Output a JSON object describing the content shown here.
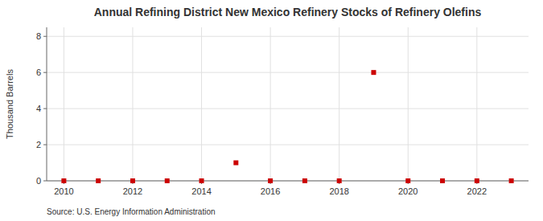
{
  "chart_data": {
    "type": "scatter",
    "title": "Annual Refining District New Mexico Refinery Stocks of Refinery Olefins",
    "y_label": "Thousand Barrels",
    "annotations": [
      "Source: U.S. Energy Information Administration"
    ],
    "x": [
      2010,
      2011,
      2012,
      2013,
      2014,
      2015,
      2016,
      2017,
      2018,
      2019,
      2020,
      2021,
      2022,
      2023
    ],
    "values": [
      0,
      0,
      0,
      0,
      0,
      1,
      0,
      0,
      0,
      6,
      0,
      0,
      0,
      0
    ],
    "color": "#cc0000",
    "marker": "square",
    "xlim": [
      2009.5,
      2023.5
    ],
    "ylim": [
      0,
      8.5
    ],
    "xticks": [
      2010,
      2012,
      2014,
      2016,
      2018,
      2020,
      2022
    ],
    "yticks": [
      0,
      2,
      4,
      6,
      8
    ],
    "grid": true
  }
}
